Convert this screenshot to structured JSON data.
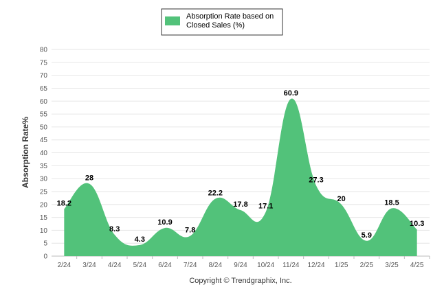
{
  "chart_data": {
    "type": "area",
    "categories": [
      "2/24",
      "3/24",
      "4/24",
      "5/24",
      "6/24",
      "7/24",
      "8/24",
      "9/24",
      "10/24",
      "11/24",
      "12/24",
      "1/25",
      "2/25",
      "3/25",
      "4/25"
    ],
    "series": [
      {
        "name": "Absorption Rate based on Closed Sales (%)",
        "legend_lines": [
          "Absorption Rate based on",
          "Closed Sales (%)"
        ],
        "values": [
          18.2,
          28,
          8.3,
          4.3,
          10.9,
          7.8,
          22.2,
          17.8,
          17.1,
          60.9,
          27.3,
          20,
          5.9,
          18.5,
          10.3
        ],
        "data_labels": [
          "18.2",
          "28",
          "8.3",
          "4.3",
          "10.9",
          "7.8",
          "22.2",
          "17.8",
          "17.1",
          "60.9",
          "27.3",
          "20",
          "5.9",
          "18.5",
          "10.3"
        ],
        "color": "#52c27a"
      }
    ],
    "ylabel": "Absorption Rate%",
    "ylim": [
      0,
      80
    ],
    "yticks": [
      "0",
      "5",
      "10",
      "15",
      "20",
      "25",
      "30",
      "35",
      "40",
      "45",
      "50",
      "55",
      "60",
      "65",
      "70",
      "75",
      "80"
    ],
    "grid": true,
    "legend_position": "top-center"
  },
  "footer": {
    "copyright": "Copyright © Trendgraphix, Inc."
  },
  "colors": {
    "area": "#52c27a",
    "grid": "#e6e6e6",
    "axis": "#bbbbbb"
  }
}
